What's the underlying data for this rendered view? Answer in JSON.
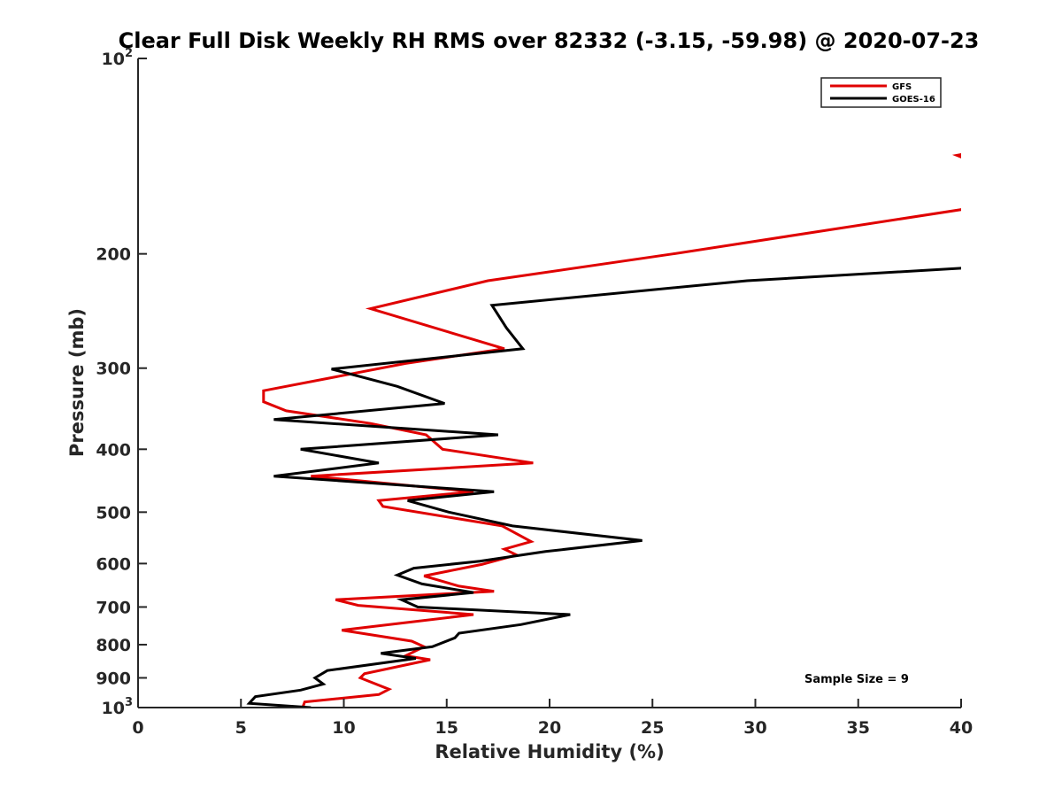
{
  "chart_data": {
    "type": "line",
    "title": "Clear Full Disk Weekly RH RMS over 82332 (-3.15, -59.98) @ 2020-07-23",
    "xlabel": "Relative Humidity (%)",
    "ylabel": "Pressure (mb)",
    "xlim": [
      0,
      40
    ],
    "ylim": [
      100,
      1000
    ],
    "yscale": "log",
    "y_reversed": true,
    "grid": false,
    "legend_position": "top-right",
    "x_ticks": [
      "0",
      "5",
      "10",
      "15",
      "20",
      "25",
      "30",
      "35",
      "40"
    ],
    "y_ticks": [
      {
        "value": 100,
        "base": "10",
        "exp": "2"
      },
      {
        "value": 200,
        "label": "200"
      },
      {
        "value": 300,
        "label": "300"
      },
      {
        "value": 400,
        "label": "400"
      },
      {
        "value": 500,
        "label": "500"
      },
      {
        "value": 600,
        "label": "600"
      },
      {
        "value": 700,
        "label": "700"
      },
      {
        "value": 800,
        "label": "800"
      },
      {
        "value": 900,
        "label": "900"
      },
      {
        "value": 1000,
        "base": "10",
        "exp": "3"
      }
    ],
    "annotation": "Sample Size = 9",
    "series": [
      {
        "name": "GFS",
        "color": "#e00000",
        "points": [
          [
            40.3,
            140
          ],
          [
            39.8,
            141
          ],
          [
            40.3,
            143
          ],
          null,
          [
            40.5,
            170
          ],
          [
            26,
            200
          ],
          [
            17,
            220
          ],
          [
            11.3,
            243
          ],
          [
            17.8,
            280
          ],
          [
            13,
            295
          ],
          [
            6.1,
            325
          ],
          [
            6.1,
            338
          ],
          [
            7.2,
            349
          ],
          [
            11.3,
            365
          ],
          [
            14,
            380
          ],
          [
            14.8,
            400
          ],
          [
            19.2,
            420
          ],
          [
            8.4,
            440
          ],
          [
            16.3,
            465
          ],
          [
            11.7,
            480
          ],
          [
            11.9,
            490
          ],
          [
            17.7,
            525
          ],
          [
            19.1,
            555
          ],
          [
            17.8,
            570
          ],
          [
            18.4,
            582
          ],
          [
            16.7,
            602
          ],
          [
            13.9,
            627
          ],
          [
            15.6,
            650
          ],
          [
            17.3,
            662
          ],
          [
            9.6,
            682
          ],
          [
            10.7,
            696
          ],
          [
            16.3,
            719
          ],
          [
            9.9,
            760
          ],
          [
            13.3,
            790
          ],
          [
            13.9,
            806
          ],
          [
            13,
            832
          ],
          [
            14.2,
            844
          ],
          [
            11,
            887
          ],
          [
            10.8,
            900
          ],
          [
            12.2,
            937
          ],
          [
            11.7,
            955
          ],
          [
            8.1,
            980
          ],
          [
            8,
            1000
          ]
        ]
      },
      {
        "name": "GOES-16",
        "color": "#000000",
        "points": [
          [
            40.5,
            210
          ],
          [
            29.6,
            220
          ],
          [
            17.2,
            240
          ],
          [
            17.9,
            260
          ],
          [
            18.7,
            280
          ],
          [
            9.4,
            301
          ],
          [
            12.6,
            320
          ],
          [
            14.9,
            340
          ],
          [
            6.6,
            360
          ],
          [
            17.5,
            380
          ],
          [
            7.9,
            400
          ],
          [
            11.7,
            420
          ],
          [
            6.6,
            440
          ],
          [
            17.3,
            465
          ],
          [
            13.1,
            480
          ],
          [
            15.1,
            500
          ],
          [
            18.2,
            525
          ],
          [
            24.5,
            553
          ],
          [
            19.8,
            575
          ],
          [
            16.6,
            595
          ],
          [
            13.4,
            610
          ],
          [
            12.6,
            625
          ],
          [
            13.8,
            645
          ],
          [
            16.3,
            665
          ],
          [
            12.8,
            682
          ],
          [
            13.6,
            700
          ],
          [
            21,
            719
          ],
          [
            18.6,
            745
          ],
          [
            15.6,
            768
          ],
          [
            15.4,
            781
          ],
          [
            14.3,
            806
          ],
          [
            11.8,
            825
          ],
          [
            13.5,
            840
          ],
          [
            9.2,
            877
          ],
          [
            8.6,
            900
          ],
          [
            9,
            920
          ],
          [
            7.9,
            940
          ],
          [
            5.7,
            962
          ],
          [
            5.4,
            985
          ],
          [
            8.4,
            1000
          ]
        ]
      }
    ]
  }
}
